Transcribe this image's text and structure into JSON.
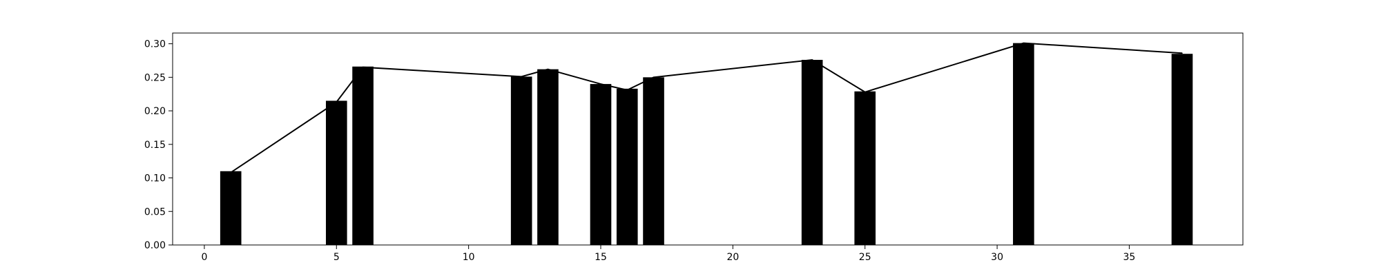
{
  "chart_data": {
    "type": "bar",
    "x": [
      1,
      5,
      6,
      12,
      13,
      15,
      16,
      17,
      23,
      25,
      31,
      37
    ],
    "values": [
      0.11,
      0.215,
      0.266,
      0.251,
      0.262,
      0.24,
      0.233,
      0.25,
      0.276,
      0.229,
      0.301,
      0.285
    ],
    "line_values": [
      0.108,
      0.213,
      0.265,
      0.251,
      0.262,
      0.24,
      0.231,
      0.25,
      0.276,
      0.228,
      0.301,
      0.286
    ],
    "xlim": [
      -1.2,
      39.3
    ],
    "ylim": [
      0,
      0.316
    ],
    "xticks": [
      0,
      5,
      10,
      15,
      20,
      25,
      30,
      35
    ],
    "yticks": [
      0.0,
      0.05,
      0.1,
      0.15,
      0.2,
      0.25,
      0.3
    ],
    "xtick_labels": [
      "0",
      "5",
      "10",
      "15",
      "20",
      "25",
      "30",
      "35"
    ],
    "ytick_labels": [
      "0.00",
      "0.05",
      "0.10",
      "0.15",
      "0.20",
      "0.25",
      "0.30"
    ],
    "bar_width": 0.8,
    "bar_color": "#000000",
    "line_color": "#000000",
    "title": "",
    "xlabel": "",
    "ylabel": "",
    "grid": false,
    "legend": false
  }
}
